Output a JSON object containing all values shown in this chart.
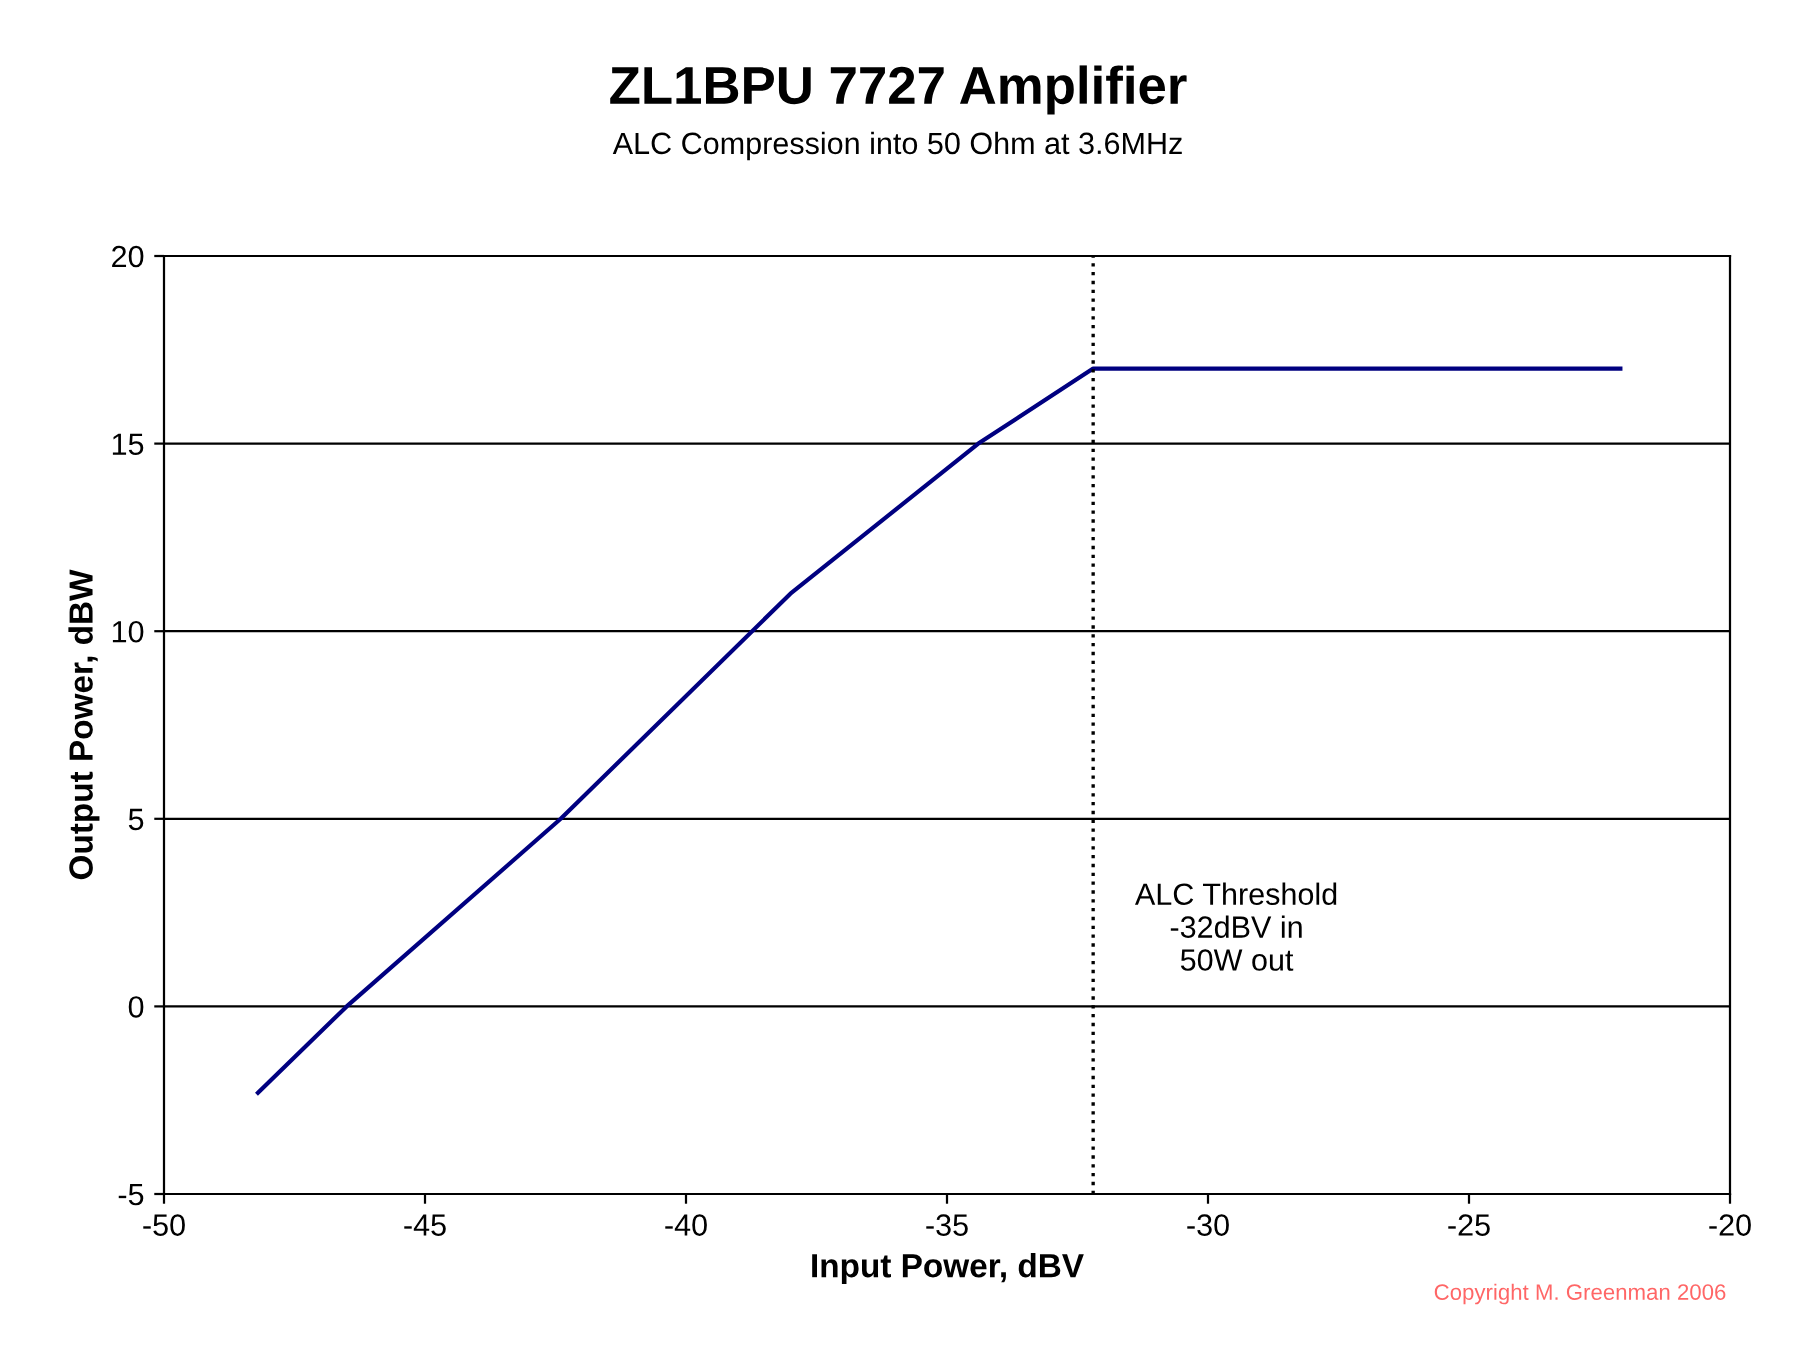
{
  "chart_data": {
    "type": "line",
    "title": "ZL1BPU 7727 Amplifier",
    "subtitle": "ALC Compression into 50 Ohm at 3.6MHz",
    "xlabel": "Input Power, dBV",
    "ylabel": "Output Power, dBW",
    "series": [
      {
        "color": "#000080",
        "x": [
          -48.2,
          -46.5,
          -42.4,
          -38.0,
          -34.4,
          -32.2,
          -22.1
        ],
        "values": [
          -2.3,
          0.0,
          5.0,
          11.0,
          15.0,
          17.0,
          17.0
        ]
      }
    ],
    "xlim": [
      -50,
      -20
    ],
    "xticks": [
      -50,
      -45,
      -40,
      -35,
      -30,
      -25,
      -20
    ],
    "ylim": [
      -5,
      20
    ],
    "yticks": [
      -5,
      0,
      5,
      10,
      15,
      20
    ],
    "grid": "y",
    "legend": false,
    "marker": "none",
    "line_style": "solid",
    "ref_lines": [
      {
        "axis": "x",
        "value": -32.2,
        "label": "ALC Threshold\n-32dBV in\n50W out",
        "color": "#000000",
        "line_style": "dotted"
      }
    ],
    "annotations": [
      "Copyright M. Greenman 2006"
    ]
  }
}
